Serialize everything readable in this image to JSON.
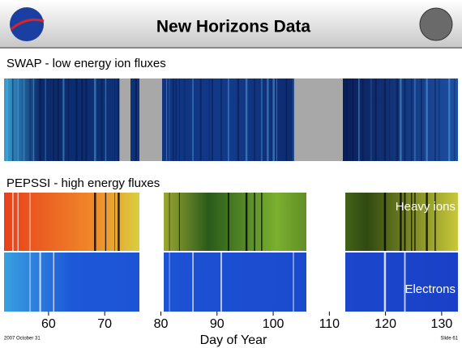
{
  "header": {
    "title": "New Horizons Data"
  },
  "panels": [
    {
      "label": "SWAP - low energy ion fluxes"
    },
    {
      "label": "PEPSSI - high energy fluxes",
      "tracks": [
        "Heavy ions",
        "Electrons"
      ]
    }
  ],
  "axis": {
    "label": "Day of Year",
    "xlim": [
      52.8,
      132.9
    ],
    "xticks": [
      60,
      70,
      80,
      90,
      100,
      110,
      120,
      130
    ]
  },
  "footer": {
    "date": "2007 October 31",
    "slide": "Slide 61"
  }
}
